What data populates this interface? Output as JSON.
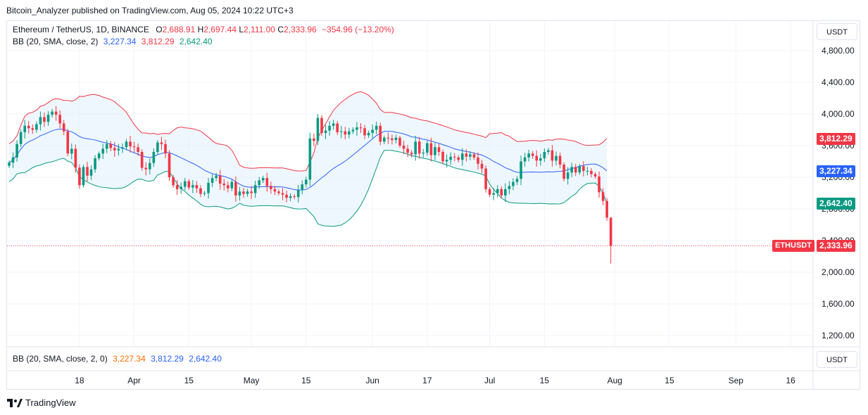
{
  "publisher_line": "Bitcoin_Analyzer published on TradingView.com, Aug 05, 2024 10:22 UTC+3",
  "legend": {
    "symbol": "Ethereum / TetherUS, 1D, BINANCE",
    "o_key": "O",
    "o_val": "2,688.91",
    "h_key": "H",
    "h_val": "2,697.44",
    "l_key": "L",
    "l_val": "2,111.00",
    "c_key": "C",
    "c_val": "2,333.96",
    "change": "−354.96 (−13.20%)",
    "bb_label": "BB (20, SMA, close, 2)",
    "bb_basis": "3,227.34",
    "bb_upper": "3,812.29",
    "bb_lower": "2,642.40"
  },
  "lower_legend": {
    "label": "BB (20, SMA, close, 2, 0)",
    "basis": "3,227.34",
    "upper": "3,812.29",
    "lower": "2,642.40"
  },
  "unit_label": "USDT",
  "unit_label_lower": "USDT",
  "badges": {
    "upper": "3,812.29",
    "basis": "3,227.34",
    "lower": "2,642.40",
    "symbol": "ETHUSDT",
    "price": "2,333.96"
  },
  "footer": {
    "brand": "TradingView"
  },
  "colors": {
    "up": "#089981",
    "down": "#f23645",
    "upper_band": "#f23645",
    "basis": "#2962ff",
    "lower_band": "#089981",
    "fill": "#e3f2fd"
  },
  "chart_data": {
    "type": "candlestick",
    "title": "Ethereum / TetherUS, 1D, BINANCE",
    "ylim": [
      1000,
      5000
    ],
    "y_ticks": [
      "1,200.00",
      "1,600.00",
      "2,000.00",
      "2,400.00",
      "2,800.00",
      "3,200.00",
      "3,600.00",
      "4,000.00",
      "4,400.00",
      "4,800.00"
    ],
    "y_tick_values": [
      1200,
      1600,
      2000,
      2400,
      2800,
      3200,
      3600,
      4000,
      4400,
      4800
    ],
    "x_ticks": [
      "18",
      "Apr",
      "15",
      "May",
      "15",
      "Jun",
      "17",
      "Jul",
      "15",
      "Aug",
      "15",
      "Sep",
      "16"
    ],
    "x_tick_days": [
      18,
      32,
      46,
      62,
      76,
      93,
      107,
      123,
      137,
      155,
      169,
      186,
      200
    ],
    "start_date": "2024-02-28",
    "last_price": 2333.96,
    "close": [
      3385,
      3450,
      3620,
      3770,
      3850,
      3820,
      3800,
      3870,
      3960,
      3900,
      3990,
      4030,
      3990,
      3880,
      3780,
      3500,
      3560,
      3320,
      3100,
      3330,
      3220,
      3300,
      3440,
      3500,
      3560,
      3620,
      3570,
      3540,
      3560,
      3580,
      3650,
      3590,
      3580,
      3520,
      3320,
      3300,
      3380,
      3520,
      3640,
      3620,
      3500,
      3200,
      3100,
      3050,
      3080,
      3150,
      3070,
      3100,
      3060,
      2990,
      3000,
      3130,
      3190,
      3220,
      3120,
      3100,
      3060,
      3140,
      2970,
      3020,
      2990,
      3020,
      3000,
      3100,
      3160,
      3190,
      3090,
      3050,
      3020,
      3000,
      2980,
      2940,
      2960,
      2950,
      3040,
      3110,
      3170,
      3690,
      3660,
      3950,
      3760,
      3790,
      3850,
      3880,
      3770,
      3780,
      3740,
      3780,
      3800,
      3830,
      3820,
      3730,
      3760,
      3800,
      3850,
      3650,
      3700,
      3690,
      3670,
      3700,
      3600,
      3560,
      3510,
      3490,
      3650,
      3500,
      3510,
      3630,
      3480,
      3580,
      3520,
      3400,
      3420,
      3460,
      3450,
      3420,
      3500,
      3460,
      3490,
      3450,
      3370,
      3310,
      3050,
      2980,
      3000,
      3050,
      2970,
      3050,
      3090,
      3140,
      3180,
      3400,
      3450,
      3500,
      3470,
      3410,
      3440,
      3520,
      3540,
      3410,
      3470,
      3360,
      3180,
      3260,
      3330,
      3260,
      3340,
      3280,
      3280,
      3240,
      3210,
      3010,
      2900,
      2690,
      2334
    ],
    "series_note": "Bollinger Bands (20, SMA, close, 2) computed from close values"
  }
}
